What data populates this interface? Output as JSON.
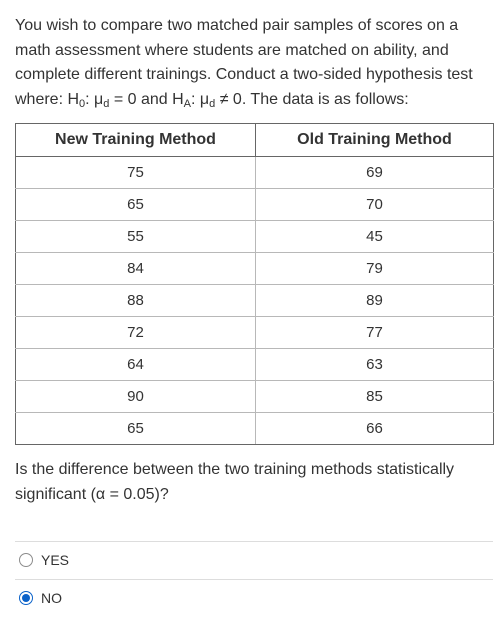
{
  "intro": {
    "text_1": "You wish to compare two matched pair samples of scores on a math assessment where students are matched on ability, and complete different trainings. Conduct a two-sided hypothesis test where: H",
    "h0_sub": "0",
    "text_2": ": μ",
    "mu_sub_1": "d",
    "text_3": " = 0 and H",
    "ha_sub": "A",
    "text_4": ": μ",
    "mu_sub_2": "d",
    "text_5": " ≠ 0.  The data is as follows:"
  },
  "table": {
    "headers": [
      "New Training Method",
      "Old Training Method"
    ],
    "rows": [
      [
        "75",
        "69"
      ],
      [
        "65",
        "70"
      ],
      [
        "55",
        "45"
      ],
      [
        "84",
        "79"
      ],
      [
        "88",
        "89"
      ],
      [
        "72",
        "77"
      ],
      [
        "64",
        "63"
      ],
      [
        "90",
        "85"
      ],
      [
        "65",
        "66"
      ]
    ]
  },
  "question": "Is the difference between the two training methods statistically significant (α = 0.05)?",
  "options": [
    {
      "label": "YES",
      "selected": false
    },
    {
      "label": "NO",
      "selected": true
    }
  ],
  "colors": {
    "text": "#333333",
    "radio_selected": "#0b62c9",
    "border": "#666666",
    "divider": "#dddddd"
  }
}
